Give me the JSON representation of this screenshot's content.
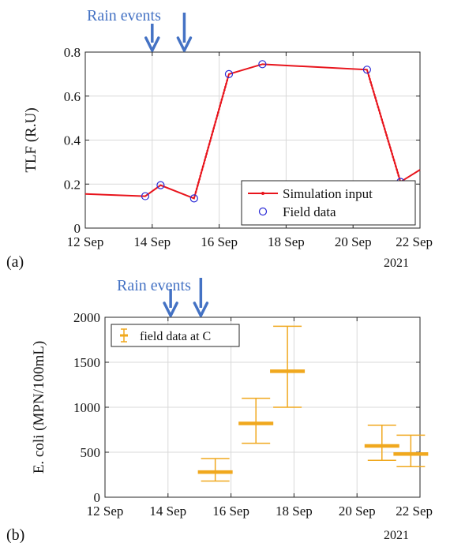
{
  "figure": {
    "year_label": "2021",
    "colors": {
      "sim": "#e8141c",
      "field": "#2b2bd6",
      "ecoli": "#f0a81e",
      "rain": "#4472c4",
      "axis": "#262626",
      "grid": "#d9d9d9"
    }
  },
  "chart_data": [
    {
      "id": "a",
      "panel_label": "(a)",
      "type": "line",
      "title": "",
      "xlabel": "",
      "ylabel": "TLF (R.U)",
      "xlim": [
        "2021-09-12",
        "2021-09-22"
      ],
      "ylim": [
        0,
        0.8
      ],
      "x_ticks": [
        "12 Sep",
        "14 Sep",
        "16 Sep",
        "18 Sep",
        "20 Sep",
        "22 Sep"
      ],
      "y_ticks": [
        "0",
        "0.2",
        "0.4",
        "0.6",
        "0.8"
      ],
      "x_tick_values": [
        "2021-09-12",
        "2021-09-14",
        "2021-09-16",
        "2021-09-18",
        "2021-09-20",
        "2021-09-22"
      ],
      "y_tick_values": [
        0,
        0.2,
        0.4,
        0.6,
        0.8
      ],
      "grid": true,
      "rain_label": "Rain events",
      "rain_events": [
        "2021-09-14 00:00",
        "2021-09-14 23:00"
      ],
      "legend": {
        "position": "bottom-right",
        "entries": [
          "Simulation input",
          "Field data"
        ]
      },
      "series": [
        {
          "name": "Simulation input",
          "style": "line-with-dots",
          "x": [
            "2021-09-12 00:00",
            "2021-09-13 19:00",
            "2021-09-14 06:00",
            "2021-09-15 06:00",
            "2021-09-16 07:00",
            "2021-09-17 07:00",
            "2021-09-20 10:00",
            "2021-09-21 10:00",
            "2021-09-22 00:00"
          ],
          "y": [
            0.155,
            0.145,
            0.195,
            0.135,
            0.7,
            0.745,
            0.72,
            0.21,
            0.265
          ]
        },
        {
          "name": "Field data",
          "style": "circles",
          "x": [
            "2021-09-13 19:00",
            "2021-09-14 06:00",
            "2021-09-15 06:00",
            "2021-09-16 07:00",
            "2021-09-17 07:00",
            "2021-09-20 10:00",
            "2021-09-21 10:00"
          ],
          "y": [
            0.145,
            0.195,
            0.135,
            0.7,
            0.745,
            0.72,
            0.21
          ]
        }
      ]
    },
    {
      "id": "b",
      "panel_label": "(b)",
      "type": "errorbar",
      "title": "",
      "xlabel": "",
      "ylabel": "E. coli (MPN/100mL)",
      "xlim": [
        "2021-09-12",
        "2021-09-22"
      ],
      "ylim": [
        0,
        2000
      ],
      "x_ticks": [
        "12 Sep",
        "14 Sep",
        "16 Sep",
        "18 Sep",
        "20 Sep",
        "22 Sep"
      ],
      "y_ticks": [
        "0",
        "500",
        "1000",
        "1500",
        "2000"
      ],
      "x_tick_values": [
        "2021-09-12",
        "2021-09-14",
        "2021-09-16",
        "2021-09-18",
        "2021-09-20",
        "2021-09-22"
      ],
      "y_tick_values": [
        0,
        500,
        1000,
        1500,
        2000
      ],
      "grid": true,
      "rain_label": "Rain events",
      "rain_events": [
        "2021-09-14 02:00",
        "2021-09-15 01:00"
      ],
      "legend": {
        "position": "top-left",
        "entries": [
          "field data at  C"
        ]
      },
      "series": [
        {
          "name": "field data at  C",
          "x": [
            "2021-09-15 12:00",
            "2021-09-16 19:00",
            "2021-09-17 19:00",
            "2021-09-20 19:00",
            "2021-09-21 17:00"
          ],
          "y": [
            280,
            820,
            1400,
            570,
            480
          ],
          "low": [
            180,
            600,
            1000,
            410,
            340
          ],
          "high": [
            430,
            1100,
            1900,
            800,
            690
          ]
        }
      ]
    }
  ]
}
